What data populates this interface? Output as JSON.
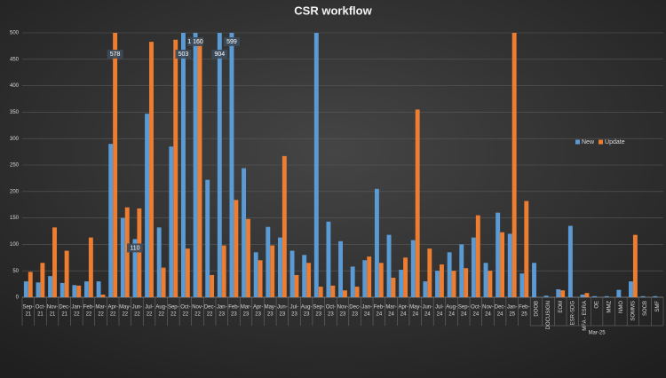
{
  "chart_data": {
    "type": "bar",
    "title": "CSR workflow",
    "categories": [
      [
        "Sep-",
        "21"
      ],
      [
        "Oct-",
        "21"
      ],
      [
        "Nov-",
        "21"
      ],
      [
        "Dec-",
        "21"
      ],
      [
        "Jan-",
        "22"
      ],
      [
        "Feb-",
        "22"
      ],
      [
        "Mar-",
        "22"
      ],
      [
        "Apr-",
        "22"
      ],
      [
        "May-",
        "22"
      ],
      [
        "Jun-",
        "22"
      ],
      [
        "Jul-",
        "22"
      ],
      [
        "Aug-",
        "22"
      ],
      [
        "Sep-",
        "22"
      ],
      [
        "Oct-",
        "22"
      ],
      [
        "Nov-",
        "22"
      ],
      [
        "Dec-",
        "22"
      ],
      [
        "Jan-",
        "23"
      ],
      [
        "Feb-",
        "23"
      ],
      [
        "Mar-",
        "23"
      ],
      [
        "Apr-",
        "23"
      ],
      [
        "May-",
        "23"
      ],
      [
        "Jun-",
        "23"
      ],
      [
        "Jul-",
        "23"
      ],
      [
        "Aug-",
        "23"
      ],
      [
        "Sep-",
        "23"
      ],
      [
        "Oct-",
        "23"
      ],
      [
        "Nov-",
        "23"
      ],
      [
        "Dec-",
        "23"
      ],
      [
        "Jan-",
        "24"
      ],
      [
        "Feb-",
        "24"
      ],
      [
        "Mar-",
        "24"
      ],
      [
        "Apr-",
        "24"
      ],
      [
        "May-",
        "24"
      ],
      [
        "Jun-",
        "24"
      ],
      [
        "Jul-",
        "24"
      ],
      [
        "Aug-",
        "24"
      ],
      [
        "Sep-",
        "24"
      ],
      [
        "Oct-",
        "24"
      ],
      [
        "Nov-",
        "24"
      ],
      [
        "Dec-",
        "24"
      ],
      [
        "Jan-",
        "25"
      ],
      [
        "Feb-",
        "25"
      ],
      "DOOB",
      "DOCUSIGN",
      "EOM",
      "ESR-SDG",
      "MFA - ESRA",
      "OE",
      "MMZ",
      "NMO",
      "SOMMS",
      "SOCB",
      "SMF"
    ],
    "group_label": "Mar-25",
    "series": [
      {
        "name": "New",
        "color": "#5b9bd5",
        "values": [
          30,
          28,
          40,
          27,
          23,
          30,
          30,
          290,
          150,
          110,
          347,
          132,
          285,
          503,
          1160,
          222,
          904,
          599,
          244,
          85,
          133,
          113,
          88,
          80,
          500,
          143,
          106,
          58,
          70,
          205,
          118,
          52,
          108,
          30,
          50,
          85,
          100,
          113,
          65,
          160,
          120,
          45,
          65,
          3,
          15,
          135,
          5,
          2,
          2,
          14,
          30,
          2,
          2
        ],
        "value_labels": [
          null,
          null,
          null,
          null,
          null,
          null,
          null,
          null,
          null,
          "110",
          null,
          null,
          null,
          "503",
          "1 160",
          null,
          "904",
          "599",
          null,
          null,
          null,
          null,
          null,
          null,
          null,
          null,
          null,
          null,
          null,
          null,
          null,
          null,
          null,
          null,
          null,
          null,
          null,
          null,
          null,
          null,
          null,
          null,
          null,
          null,
          null,
          null,
          null,
          null,
          null,
          null,
          null,
          null,
          null
        ]
      },
      {
        "name": "Update",
        "color": "#ed7d31",
        "values": [
          48,
          65,
          132,
          88,
          22,
          113,
          5,
          578,
          170,
          168,
          483,
          56,
          487,
          92,
          490,
          42,
          98,
          184,
          148,
          70,
          98,
          267,
          42,
          65,
          20,
          22,
          13,
          20,
          77,
          65,
          37,
          75,
          355,
          92,
          62,
          50,
          55,
          155,
          50,
          123,
          500,
          182,
          0,
          0,
          13,
          0,
          8,
          0,
          0,
          0,
          118,
          0,
          0
        ],
        "value_labels": [
          null,
          null,
          null,
          null,
          null,
          null,
          null,
          "578",
          null,
          null,
          null,
          null,
          null,
          null,
          null,
          null,
          null,
          null,
          null,
          null,
          null,
          null,
          null,
          null,
          null,
          null,
          null,
          null,
          null,
          null,
          null,
          null,
          null,
          null,
          null,
          null,
          null,
          null,
          null,
          null,
          null,
          null,
          null,
          null,
          null,
          null,
          null,
          null,
          null,
          null,
          null,
          null,
          null
        ]
      }
    ],
    "ylim": [
      0,
      500
    ],
    "yticks": [
      0,
      50,
      100,
      150,
      200,
      250,
      300,
      350,
      400,
      450,
      500
    ],
    "grid": true,
    "legend": "right"
  }
}
